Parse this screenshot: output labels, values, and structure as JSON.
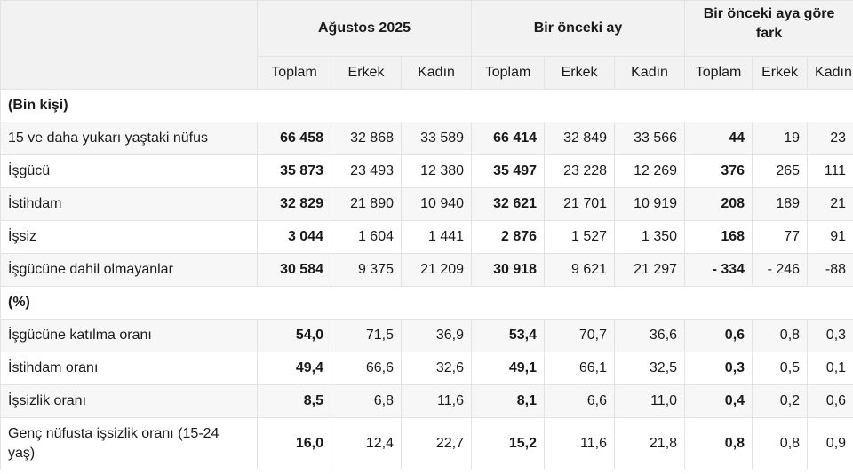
{
  "header": {
    "groups": [
      "Ağustos 2025",
      "Bir önceki ay",
      "Bir önceki aya göre fark"
    ],
    "subs": [
      "Toplam",
      "Erkek",
      "Kadın",
      "Toplam",
      "Erkek",
      "Kadın",
      "Toplam",
      "Erkek",
      "Kadın"
    ]
  },
  "sections": [
    {
      "title": "(Bin kişi)",
      "rows": [
        {
          "label": "15 ve daha yukarı yaştaki nüfus",
          "cells": [
            "66 458",
            "32 868",
            "33 589",
            "66 414",
            "32 849",
            "33 566",
            "44",
            "19",
            "23"
          ]
        },
        {
          "label": "İşgücü",
          "cells": [
            "35 873",
            "23 493",
            "12 380",
            "35 497",
            "23 228",
            "12 269",
            "376",
            "265",
            "111"
          ]
        },
        {
          "label": "İstihdam",
          "cells": [
            "32 829",
            "21 890",
            "10 940",
            "32 621",
            "21 701",
            "10 919",
            "208",
            "189",
            "21"
          ]
        },
        {
          "label": "İşsiz",
          "cells": [
            "3 044",
            "1 604",
            "1 441",
            "2 876",
            "1 527",
            "1 350",
            "168",
            "77",
            "91"
          ]
        },
        {
          "label": "İşgücüne dahil olmayanlar",
          "cells": [
            "30 584",
            "9 375",
            "21 209",
            "30 918",
            "9 621",
            "21 297",
            "- 334",
            "- 246",
            "-88"
          ]
        }
      ]
    },
    {
      "title": "(%)",
      "rows": [
        {
          "label": "İşgücüne katılma oranı",
          "cells": [
            "54,0",
            "71,5",
            "36,9",
            "53,4",
            "70,7",
            "36,6",
            "0,6",
            "0,8",
            "0,3"
          ]
        },
        {
          "label": "İstihdam oranı",
          "cells": [
            "49,4",
            "66,6",
            "32,6",
            "49,1",
            "66,1",
            "32,5",
            "0,3",
            "0,5",
            "0,1"
          ]
        },
        {
          "label": "İşsizlik oranı",
          "cells": [
            "8,5",
            "6,8",
            "11,6",
            "8,1",
            "6,6",
            "11,0",
            "0,4",
            "0,2",
            "0,6"
          ]
        },
        {
          "label": "Genç nüfusta işsizlik oranı (15-24 yaş)",
          "cells": [
            "16,0",
            "12,4",
            "22,7",
            "15,2",
            "11,6",
            "21,8",
            "0,8",
            "0,8",
            "0,9"
          ]
        }
      ]
    }
  ]
}
